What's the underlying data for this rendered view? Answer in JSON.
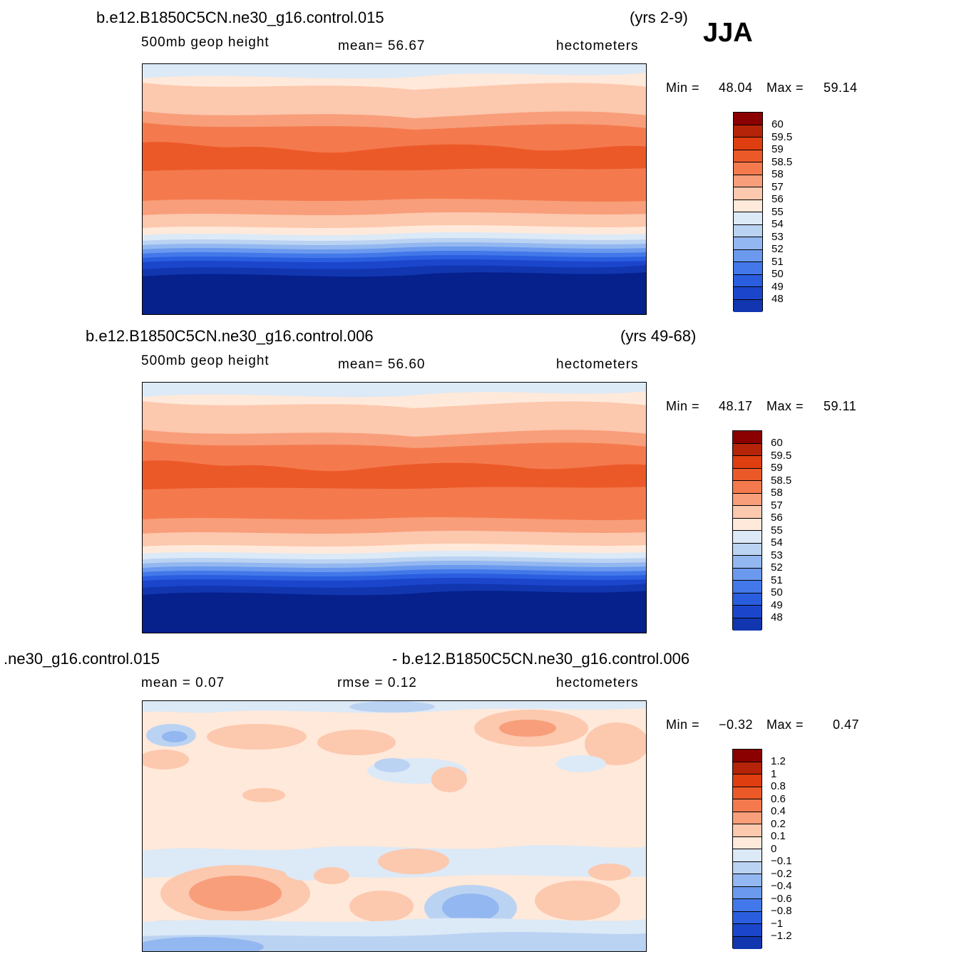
{
  "season": "JJA",
  "palette": {
    "warm": [
      "#FFE9DA",
      "#FCC8AE",
      "#F89E7A",
      "#F47A4E",
      "#EC5928",
      "#DF3E10",
      "#B52408",
      "#8B0000"
    ],
    "cold": [
      "#DCE9F7",
      "#BBD3F2",
      "#93B7F0",
      "#6A99EE",
      "#4378EA",
      "#2A5EDF",
      "#1B46CC",
      "#1136B0",
      "#06208C"
    ]
  },
  "panels": [
    {
      "id": "p1",
      "case_label": "b.e12.B1850C5CN.ne30_g16.control.015",
      "years": "(yrs 2-9)",
      "variable": "500mb  geop  height",
      "stat1": "mean=   56.67",
      "units": "hectometers",
      "min_label": "Min =",
      "min_value": "48.04",
      "max_label": "Max =",
      "max_value": "59.14",
      "levels": [
        "60",
        "59.5",
        "59",
        "58.5",
        "58",
        "57",
        "56",
        "55",
        "54",
        "53",
        "52",
        "51",
        "50",
        "49",
        "48"
      ]
    },
    {
      "id": "p2",
      "case_label": "b.e12.B1850C5CN.ne30_g16.control.006",
      "years": "(yrs 49-68)",
      "variable": "500mb  geop  height",
      "stat1": "mean=   56.60",
      "units": "hectometers",
      "min_label": "Min =",
      "min_value": "48.17",
      "max_label": "Max =",
      "max_value": "59.11",
      "levels": [
        "60",
        "59.5",
        "59",
        "58.5",
        "58",
        "57",
        "56",
        "55",
        "54",
        "53",
        "52",
        "51",
        "50",
        "49",
        "48"
      ]
    },
    {
      "id": "p3",
      "case_label": ".ne30_g16.control.015",
      "diff_label": "- b.e12.B1850C5CN.ne30_g16.control.006",
      "stat1": "mean =    0.07",
      "stat2": "rmse =    0.12",
      "units": "hectometers",
      "min_label": "Min =",
      "min_value": "−0.32",
      "max_label": "Max =",
      "max_value": "0.47",
      "levels": [
        "1.2",
        "1",
        "0.8",
        "0.6",
        "0.4",
        "0.2",
        "0.1",
        "0",
        "−0.1",
        "−0.2",
        "−0.4",
        "−0.6",
        "−0.8",
        "−1",
        "−1.2"
      ]
    }
  ]
}
